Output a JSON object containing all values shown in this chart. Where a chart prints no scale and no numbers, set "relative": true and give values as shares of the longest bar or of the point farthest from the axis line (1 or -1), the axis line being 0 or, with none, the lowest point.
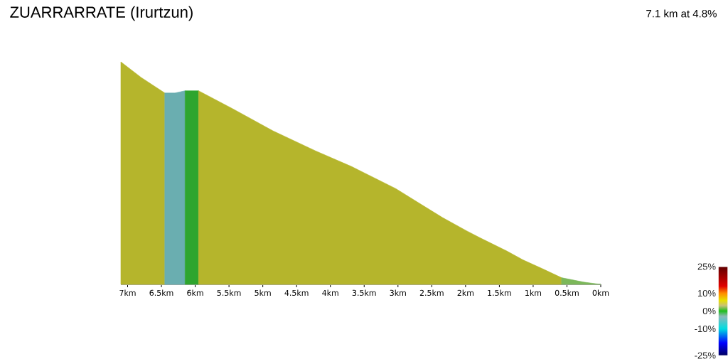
{
  "chart_data": {
    "type": "area",
    "title": "ZUARRARRATE (Irurtzun)",
    "subtitle": "7.1 km at 4.8%",
    "relative": true,
    "xlim": [
      7.1,
      0
    ],
    "xticks": [
      {
        "value": 7,
        "label": "7km"
      },
      {
        "value": 6.5,
        "label": "6.5km"
      },
      {
        "value": 6,
        "label": "6km"
      },
      {
        "value": 5.5,
        "label": "5.5km"
      },
      {
        "value": 5,
        "label": "5km"
      },
      {
        "value": 4.5,
        "label": "4.5km"
      },
      {
        "value": 4,
        "label": "4km"
      },
      {
        "value": 3.5,
        "label": "3.5km"
      },
      {
        "value": 3,
        "label": "3km"
      },
      {
        "value": 2.5,
        "label": "2.5km"
      },
      {
        "value": 2,
        "label": "2km"
      },
      {
        "value": 1.5,
        "label": "1.5km"
      },
      {
        "value": 1,
        "label": "1km"
      },
      {
        "value": 0.5,
        "label": "0.5km"
      },
      {
        "value": 0,
        "label": "0km"
      }
    ],
    "series": [
      {
        "color": "#b5b52c",
        "x": [
          7.1,
          6.8,
          6.45
        ],
        "values": [
          1.0,
          0.93,
          0.86
        ]
      },
      {
        "color": "#6aaeb0",
        "x": [
          6.45,
          6.3,
          6.15
        ],
        "values": [
          0.86,
          0.86,
          0.87
        ]
      },
      {
        "color": "#2ea52e",
        "x": [
          6.15,
          5.95
        ],
        "values": [
          0.87,
          0.87
        ]
      },
      {
        "color": "#b5b52c",
        "x": [
          5.95,
          5.45,
          4.85,
          4.22,
          3.69,
          3.36,
          3.03,
          2.66,
          2.34,
          1.98,
          1.79,
          1.39,
          1.15,
          0.86,
          0.58
        ],
        "values": [
          0.87,
          0.79,
          0.69,
          0.6,
          0.53,
          0.48,
          0.43,
          0.36,
          0.3,
          0.24,
          0.21,
          0.15,
          0.11,
          0.07,
          0.03
        ]
      },
      {
        "color": "#7cb85a",
        "x": [
          0.58,
          0.25,
          0
        ],
        "values": [
          0.03,
          0.01,
          0
        ]
      }
    ],
    "clim": [
      -25,
      25
    ],
    "cticks": [
      {
        "value": 25,
        "label": "25%"
      },
      {
        "value": 10,
        "label": "10%"
      },
      {
        "value": 0,
        "label": "0%"
      },
      {
        "value": -10,
        "label": "-10%"
      },
      {
        "value": -25,
        "label": "-25%"
      }
    ]
  }
}
